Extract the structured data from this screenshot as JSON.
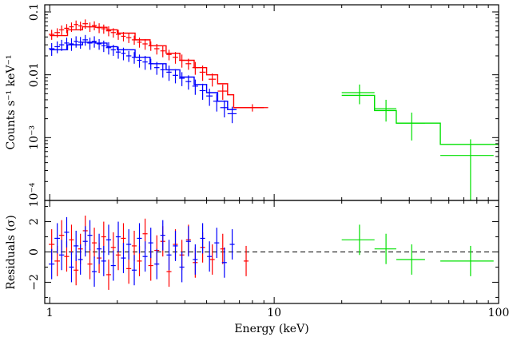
{
  "chart_data": [
    {
      "type": "scatter",
      "title": "",
      "xlabel": "",
      "ylabel": "Counts s⁻¹ keV⁻¹",
      "xscale": "log",
      "yscale": "log",
      "xlim": [
        0.95,
        100
      ],
      "ylim": [
        0.0001,
        0.13
      ],
      "x_ticks": [
        {
          "v": 1,
          "label": "1"
        },
        {
          "v": 10,
          "label": "10"
        },
        {
          "v": 100,
          "label": "100"
        }
      ],
      "y_ticks": [
        {
          "v": 0.1,
          "label": "0.1"
        },
        {
          "v": 0.01,
          "label": "0.01"
        },
        {
          "v": 0.001,
          "label": "10⁻³"
        },
        {
          "v": 0.0001,
          "label": "10⁻⁴"
        }
      ],
      "series": [
        {
          "color": "#ff0000",
          "points": [
            {
              "x": 1.02,
              "y": 0.044,
              "xe": 0.03,
              "ye": 0.008
            },
            {
              "x": 1.08,
              "y": 0.047,
              "xe": 0.03,
              "ye": 0.008
            },
            {
              "x": 1.13,
              "y": 0.052,
              "xe": 0.03,
              "ye": 0.009
            },
            {
              "x": 1.19,
              "y": 0.055,
              "xe": 0.03,
              "ye": 0.009
            },
            {
              "x": 1.25,
              "y": 0.058,
              "xe": 0.03,
              "ye": 0.01
            },
            {
              "x": 1.31,
              "y": 0.063,
              "xe": 0.03,
              "ye": 0.01
            },
            {
              "x": 1.37,
              "y": 0.06,
              "xe": 0.03,
              "ye": 0.01
            },
            {
              "x": 1.44,
              "y": 0.065,
              "xe": 0.04,
              "ye": 0.011
            },
            {
              "x": 1.51,
              "y": 0.058,
              "xe": 0.04,
              "ye": 0.01
            },
            {
              "x": 1.58,
              "y": 0.061,
              "xe": 0.04,
              "ye": 0.01
            },
            {
              "x": 1.66,
              "y": 0.056,
              "xe": 0.04,
              "ye": 0.01
            },
            {
              "x": 1.74,
              "y": 0.054,
              "xe": 0.04,
              "ye": 0.009
            },
            {
              "x": 1.83,
              "y": 0.05,
              "xe": 0.05,
              "ye": 0.009
            },
            {
              "x": 1.92,
              "y": 0.047,
              "xe": 0.05,
              "ye": 0.008
            },
            {
              "x": 2.02,
              "y": 0.044,
              "xe": 0.05,
              "ye": 0.008
            },
            {
              "x": 2.13,
              "y": 0.041,
              "xe": 0.05,
              "ye": 0.007
            },
            {
              "x": 2.25,
              "y": 0.039,
              "xe": 0.06,
              "ye": 0.007
            },
            {
              "x": 2.38,
              "y": 0.036,
              "xe": 0.06,
              "ye": 0.006
            },
            {
              "x": 2.51,
              "y": 0.033,
              "xe": 0.06,
              "ye": 0.006
            },
            {
              "x": 2.66,
              "y": 0.031,
              "xe": 0.07,
              "ye": 0.006
            },
            {
              "x": 2.82,
              "y": 0.029,
              "xe": 0.07,
              "ye": 0.005
            },
            {
              "x": 3.0,
              "y": 0.026,
              "xe": 0.08,
              "ye": 0.005
            },
            {
              "x": 3.19,
              "y": 0.024,
              "xe": 0.08,
              "ye": 0.005
            },
            {
              "x": 3.4,
              "y": 0.021,
              "xe": 0.09,
              "ye": 0.004
            },
            {
              "x": 3.63,
              "y": 0.019,
              "xe": 0.1,
              "ye": 0.004
            },
            {
              "x": 3.88,
              "y": 0.017,
              "xe": 0.11,
              "ye": 0.004
            },
            {
              "x": 4.15,
              "y": 0.015,
              "xe": 0.12,
              "ye": 0.003
            },
            {
              "x": 4.45,
              "y": 0.013,
              "xe": 0.13,
              "ye": 0.003
            },
            {
              "x": 4.8,
              "y": 0.011,
              "xe": 0.15,
              "ye": 0.003
            },
            {
              "x": 5.3,
              "y": 0.0085,
              "xe": 0.2,
              "ye": 0.002
            },
            {
              "x": 5.9,
              "y": 0.0055,
              "xe": 0.3,
              "ye": 0.0015
            },
            {
              "x": 8.0,
              "y": 0.003,
              "xe": 1.4,
              "ye": 0.0004
            }
          ],
          "model": [
            [
              1.0,
              0.042
            ],
            [
              1.2,
              0.052
            ],
            [
              1.4,
              0.058
            ],
            [
              1.6,
              0.057
            ],
            [
              1.8,
              0.052
            ],
            [
              2.0,
              0.046
            ],
            [
              2.4,
              0.036
            ],
            [
              2.8,
              0.029
            ],
            [
              3.3,
              0.022
            ],
            [
              3.8,
              0.017
            ],
            [
              4.4,
              0.013
            ],
            [
              5.0,
              0.01
            ],
            [
              5.6,
              0.0072
            ],
            [
              6.2,
              0.0048
            ],
            [
              6.6,
              0.003
            ],
            [
              9.0,
              0.003
            ]
          ]
        },
        {
          "color": "#0000ff",
          "points": [
            {
              "x": 1.02,
              "y": 0.026,
              "xe": 0.03,
              "ye": 0.006
            },
            {
              "x": 1.08,
              "y": 0.028,
              "xe": 0.03,
              "ye": 0.006
            },
            {
              "x": 1.13,
              "y": 0.03,
              "xe": 0.03,
              "ye": 0.006
            },
            {
              "x": 1.19,
              "y": 0.032,
              "xe": 0.03,
              "ye": 0.007
            },
            {
              "x": 1.25,
              "y": 0.031,
              "xe": 0.03,
              "ye": 0.007
            },
            {
              "x": 1.31,
              "y": 0.034,
              "xe": 0.03,
              "ye": 0.007
            },
            {
              "x": 1.37,
              "y": 0.033,
              "xe": 0.03,
              "ye": 0.007
            },
            {
              "x": 1.44,
              "y": 0.036,
              "xe": 0.04,
              "ye": 0.007
            },
            {
              "x": 1.51,
              "y": 0.032,
              "xe": 0.04,
              "ye": 0.007
            },
            {
              "x": 1.58,
              "y": 0.034,
              "xe": 0.04,
              "ye": 0.007
            },
            {
              "x": 1.66,
              "y": 0.031,
              "xe": 0.04,
              "ye": 0.006
            },
            {
              "x": 1.74,
              "y": 0.029,
              "xe": 0.04,
              "ye": 0.006
            },
            {
              "x": 1.83,
              "y": 0.027,
              "xe": 0.05,
              "ye": 0.006
            },
            {
              "x": 1.92,
              "y": 0.025,
              "xe": 0.05,
              "ye": 0.005
            },
            {
              "x": 2.02,
              "y": 0.023,
              "xe": 0.05,
              "ye": 0.005
            },
            {
              "x": 2.13,
              "y": 0.022,
              "xe": 0.05,
              "ye": 0.005
            },
            {
              "x": 2.25,
              "y": 0.02,
              "xe": 0.06,
              "ye": 0.004
            },
            {
              "x": 2.38,
              "y": 0.019,
              "xe": 0.06,
              "ye": 0.004
            },
            {
              "x": 2.51,
              "y": 0.017,
              "xe": 0.06,
              "ye": 0.004
            },
            {
              "x": 2.66,
              "y": 0.016,
              "xe": 0.07,
              "ye": 0.004
            },
            {
              "x": 2.82,
              "y": 0.015,
              "xe": 0.07,
              "ye": 0.003
            },
            {
              "x": 3.0,
              "y": 0.013,
              "xe": 0.08,
              "ye": 0.003
            },
            {
              "x": 3.19,
              "y": 0.012,
              "xe": 0.08,
              "ye": 0.003
            },
            {
              "x": 3.4,
              "y": 0.011,
              "xe": 0.09,
              "ye": 0.003
            },
            {
              "x": 3.63,
              "y": 0.0098,
              "xe": 0.1,
              "ye": 0.0025
            },
            {
              "x": 3.88,
              "y": 0.0088,
              "xe": 0.11,
              "ye": 0.0022
            },
            {
              "x": 4.15,
              "y": 0.0078,
              "xe": 0.12,
              "ye": 0.002
            },
            {
              "x": 4.45,
              "y": 0.0066,
              "xe": 0.13,
              "ye": 0.0018
            },
            {
              "x": 4.8,
              "y": 0.0056,
              "xe": 0.15,
              "ye": 0.0016
            },
            {
              "x": 5.15,
              "y": 0.0046,
              "xe": 0.17,
              "ye": 0.0014
            },
            {
              "x": 5.55,
              "y": 0.0038,
              "xe": 0.2,
              "ye": 0.0012
            },
            {
              "x": 6.0,
              "y": 0.003,
              "xe": 0.25,
              "ye": 0.0009
            },
            {
              "x": 6.5,
              "y": 0.0024,
              "xe": 0.3,
              "ye": 0.0007
            }
          ],
          "model": [
            [
              1.0,
              0.025
            ],
            [
              1.2,
              0.03
            ],
            [
              1.4,
              0.033
            ],
            [
              1.6,
              0.032
            ],
            [
              1.8,
              0.028
            ],
            [
              2.0,
              0.025
            ],
            [
              2.4,
              0.019
            ],
            [
              2.8,
              0.015
            ],
            [
              3.3,
              0.012
            ],
            [
              3.8,
              0.0092
            ],
            [
              4.4,
              0.007
            ],
            [
              5.0,
              0.0052
            ],
            [
              5.6,
              0.0038
            ],
            [
              6.2,
              0.0028
            ],
            [
              6.8,
              0.0028
            ]
          ]
        },
        {
          "color": "#00e000",
          "points": [
            {
              "x": 24.0,
              "y": 0.0052,
              "xe": 4.0,
              "ye": 0.0018
            },
            {
              "x": 31.5,
              "y": 0.0029,
              "xe": 3.5,
              "ye": 0.0011
            },
            {
              "x": 41.0,
              "y": 0.0017,
              "xe": 6.0,
              "ye": 0.0008
            },
            {
              "x": 75.0,
              "y": 0.00052,
              "xe": 20.0,
              "ye": 0.00042
            }
          ],
          "model": [
            [
              20.0,
              0.0047
            ],
            [
              28.0,
              0.0047
            ],
            [
              28.0,
              0.0027
            ],
            [
              35.0,
              0.0027
            ],
            [
              35.0,
              0.0017
            ],
            [
              55.0,
              0.0017
            ],
            [
              55.0,
              0.00078
            ],
            [
              100.0,
              0.00078
            ]
          ]
        }
      ]
    },
    {
      "type": "scatter",
      "title": "",
      "xlabel": "Energy (keV)",
      "ylabel": "Residuals (σ)",
      "xscale": "log",
      "yscale": "linear",
      "xlim": [
        0.95,
        100
      ],
      "ylim": [
        -3.4,
        3.4
      ],
      "reference_line": 0,
      "x_ticks": [
        {
          "v": 1,
          "label": "1"
        },
        {
          "v": 10,
          "label": "10"
        },
        {
          "v": 100,
          "label": "100"
        }
      ],
      "y_ticks": [
        {
          "v": 2,
          "label": "2"
        },
        {
          "v": 0,
          "label": "0"
        },
        {
          "v": -2,
          "label": "−2"
        }
      ],
      "series": [
        {
          "color": "#ff0000",
          "points": [
            {
              "x": 1.02,
              "y": 0.5
            },
            {
              "x": 1.08,
              "y": -0.6
            },
            {
              "x": 1.13,
              "y": 1.1
            },
            {
              "x": 1.19,
              "y": -0.3
            },
            {
              "x": 1.25,
              "y": 0.8
            },
            {
              "x": 1.31,
              "y": -1.2
            },
            {
              "x": 1.37,
              "y": 0.2
            },
            {
              "x": 1.44,
              "y": 1.4
            },
            {
              "x": 1.51,
              "y": -0.8
            },
            {
              "x": 1.58,
              "y": 0.6
            },
            {
              "x": 1.66,
              "y": -0.4
            },
            {
              "x": 1.74,
              "y": 1.0
            },
            {
              "x": 1.83,
              "y": -1.5
            },
            {
              "x": 1.92,
              "y": 0.3
            },
            {
              "x": 2.02,
              "y": -0.2
            },
            {
              "x": 2.13,
              "y": 0.9
            },
            {
              "x": 2.25,
              "y": -1.1
            },
            {
              "x": 2.38,
              "y": 0.4
            },
            {
              "x": 2.51,
              "y": -0.6
            },
            {
              "x": 2.66,
              "y": 1.2
            },
            {
              "x": 2.82,
              "y": -0.9
            },
            {
              "x": 3.0,
              "y": 0.1
            },
            {
              "x": 3.19,
              "y": 0.7
            },
            {
              "x": 3.4,
              "y": -1.3
            },
            {
              "x": 3.63,
              "y": 0.5
            },
            {
              "x": 3.88,
              "y": -0.2
            },
            {
              "x": 4.15,
              "y": 0.8
            },
            {
              "x": 4.45,
              "y": -0.7
            },
            {
              "x": 4.8,
              "y": 0.3
            },
            {
              "x": 5.3,
              "y": -0.5
            },
            {
              "x": 5.9,
              "y": 0.2
            },
            {
              "x": 7.5,
              "y": -0.6
            }
          ]
        },
        {
          "color": "#0000ff",
          "points": [
            {
              "x": 1.02,
              "y": -0.8
            },
            {
              "x": 1.08,
              "y": 0.9
            },
            {
              "x": 1.13,
              "y": -0.2
            },
            {
              "x": 1.19,
              "y": 1.3
            },
            {
              "x": 1.25,
              "y": -1.0
            },
            {
              "x": 1.31,
              "y": 0.4
            },
            {
              "x": 1.37,
              "y": -0.5
            },
            {
              "x": 1.44,
              "y": 0.7
            },
            {
              "x": 1.51,
              "y": 1.1
            },
            {
              "x": 1.58,
              "y": -1.3
            },
            {
              "x": 1.66,
              "y": 0.2
            },
            {
              "x": 1.74,
              "y": -0.6
            },
            {
              "x": 1.83,
              "y": 0.8
            },
            {
              "x": 1.92,
              "y": -0.9
            },
            {
              "x": 2.02,
              "y": 1.0
            },
            {
              "x": 2.13,
              "y": -0.4
            },
            {
              "x": 2.25,
              "y": 0.5
            },
            {
              "x": 2.38,
              "y": -1.2
            },
            {
              "x": 2.51,
              "y": 0.9
            },
            {
              "x": 2.66,
              "y": -0.3
            },
            {
              "x": 2.82,
              "y": 0.6
            },
            {
              "x": 3.0,
              "y": -0.8
            },
            {
              "x": 3.19,
              "y": 1.1
            },
            {
              "x": 3.4,
              "y": -0.2
            },
            {
              "x": 3.63,
              "y": 0.4
            },
            {
              "x": 3.88,
              "y": -1.0
            },
            {
              "x": 4.15,
              "y": 0.7
            },
            {
              "x": 4.45,
              "y": -0.5
            },
            {
              "x": 4.8,
              "y": 0.9
            },
            {
              "x": 5.15,
              "y": -0.3
            },
            {
              "x": 5.55,
              "y": 0.6
            },
            {
              "x": 6.0,
              "y": -0.7
            },
            {
              "x": 6.5,
              "y": 0.5
            }
          ]
        },
        {
          "color": "#00e000",
          "points": [
            {
              "x": 24.0,
              "y": 0.8,
              "xe": 4.0
            },
            {
              "x": 31.5,
              "y": 0.2,
              "xe": 3.5
            },
            {
              "x": 41.0,
              "y": -0.5,
              "xe": 6.0
            },
            {
              "x": 75.0,
              "y": -0.6,
              "xe": 20.0
            }
          ]
        }
      ]
    }
  ]
}
